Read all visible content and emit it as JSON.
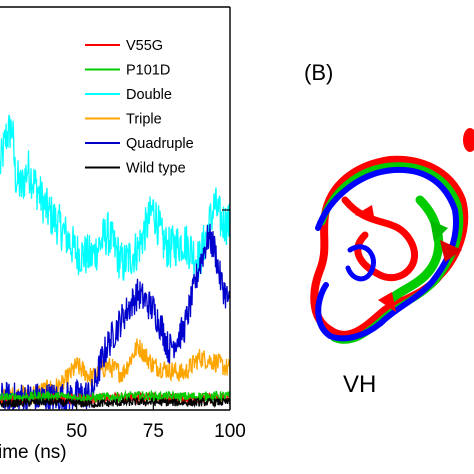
{
  "chart_data": {
    "type": "line",
    "xlabel": "Time (ns)",
    "xlabel_visible": "ime (ns)",
    "x_ticks": [
      50,
      75,
      100
    ],
    "xlim": [
      25,
      100
    ],
    "ylim": [
      0,
      10
    ],
    "legend_position": "top-right",
    "series": [
      {
        "name": "V55G",
        "color": "#ff0000",
        "x": [
          25,
          40,
          55,
          70,
          85,
          100
        ],
        "y": [
          0.25,
          0.3,
          0.28,
          0.32,
          0.3,
          0.3
        ]
      },
      {
        "name": "P101D",
        "color": "#00cc00",
        "x": [
          25,
          40,
          55,
          70,
          85,
          100
        ],
        "y": [
          0.3,
          0.35,
          0.3,
          0.35,
          0.33,
          0.35
        ]
      },
      {
        "name": "Double",
        "color": "#00ffff",
        "x": [
          25,
          27,
          29,
          30,
          32,
          34,
          37,
          40,
          45,
          50,
          55,
          60,
          65,
          70,
          75,
          78,
          80,
          85,
          90,
          95,
          97,
          100
        ],
        "y": [
          6.0,
          6.8,
          7.0,
          5.8,
          5.5,
          6.0,
          5.5,
          5.0,
          4.5,
          3.9,
          3.8,
          4.4,
          3.6,
          4.0,
          5.0,
          4.2,
          4.0,
          4.2,
          3.7,
          5.1,
          4.7,
          4.6
        ]
      },
      {
        "name": "Triple",
        "color": "#ffa500",
        "x": [
          25,
          35,
          45,
          50,
          55,
          60,
          65,
          70,
          75,
          80,
          85,
          90,
          95,
          100
        ],
        "y": [
          0.3,
          0.4,
          0.6,
          1.1,
          0.8,
          1.1,
          0.9,
          1.6,
          1.1,
          1.0,
          0.9,
          1.3,
          1.2,
          1.0
        ]
      },
      {
        "name": "Quadruple",
        "color": "#0000cc",
        "x": [
          25,
          35,
          45,
          55,
          58,
          60,
          65,
          70,
          75,
          78,
          80,
          85,
          88,
          90,
          93,
          95,
          97,
          100
        ],
        "y": [
          0.3,
          0.3,
          0.3,
          0.4,
          1.2,
          1.6,
          2.3,
          2.9,
          2.5,
          2.0,
          1.5,
          2.0,
          2.9,
          3.6,
          4.3,
          4.0,
          3.2,
          2.6
        ]
      },
      {
        "name": "Wild type",
        "color": "#000000",
        "x": [
          25,
          40,
          55,
          70,
          85,
          100
        ],
        "y": [
          0.15,
          0.2,
          0.15,
          0.2,
          0.18,
          0.2
        ]
      }
    ]
  },
  "panel_b": {
    "label": "(B)",
    "structure_label": "VH",
    "colors": {
      "red": "#ff0000",
      "green": "#00cc00",
      "blue": "#0000ff"
    }
  }
}
